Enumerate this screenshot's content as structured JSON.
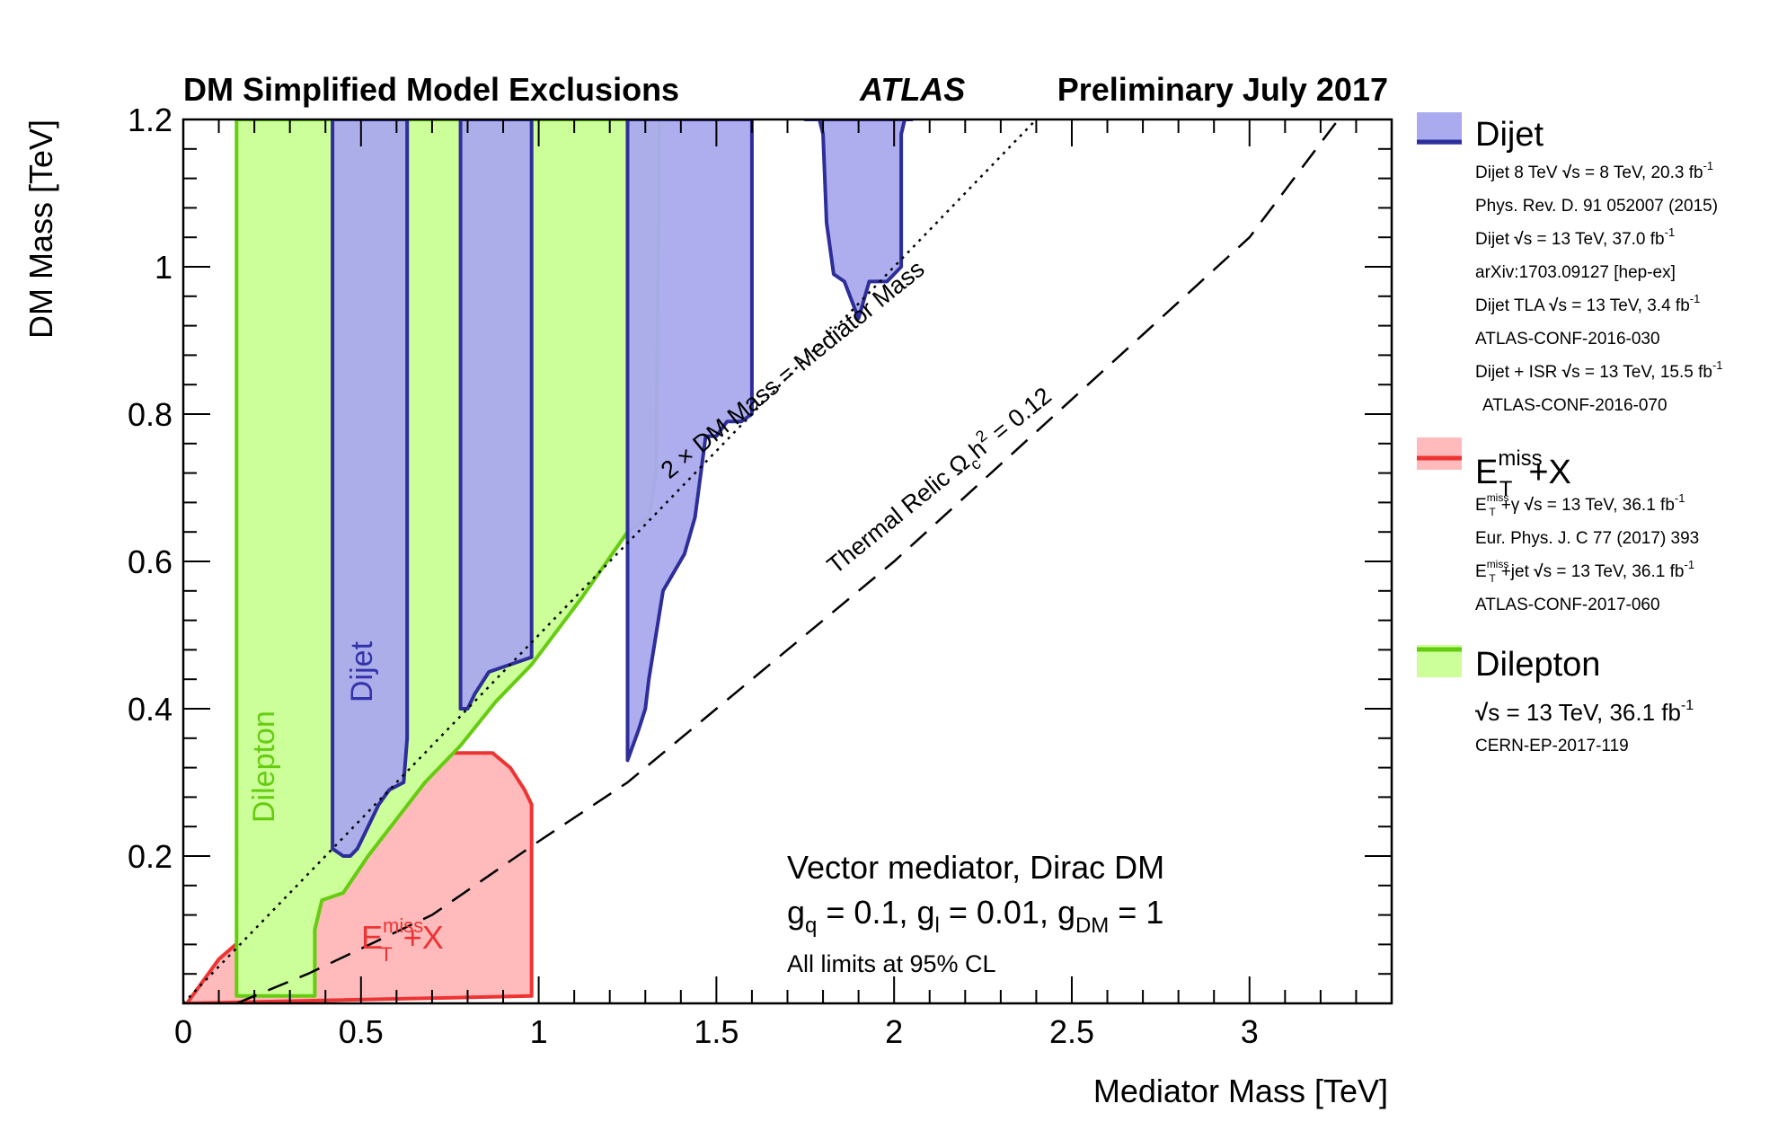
{
  "header": {
    "title": "DM Simplified Model Exclusions",
    "experiment": "ATLAS",
    "status": "Preliminary July 2017"
  },
  "chart_data": {
    "type": "area",
    "xlabel": "Mediator Mass [TeV]",
    "ylabel": "DM Mass [TeV]",
    "xlim": [
      0,
      3.4
    ],
    "ylim": [
      0,
      1.2
    ],
    "x_ticks": [
      0,
      0.5,
      1,
      1.5,
      2,
      2.5,
      3
    ],
    "x_tick_labels": [
      "0",
      "0.5",
      "1",
      "1.5",
      "2",
      "2.5",
      "3"
    ],
    "y_ticks": [
      0.2,
      0.4,
      0.6,
      0.8,
      1.0,
      1.2
    ],
    "y_tick_labels": [
      "0.2",
      "0.4",
      "0.6",
      "0.8",
      "1",
      "1.2"
    ],
    "colors": {
      "dijet_fill": "#aaaaee",
      "dijet_line": "#2e2e9a",
      "etmiss_fill": "#ffbbbb",
      "etmiss_line": "#ee3333",
      "dilepton_fill": "#ccff99",
      "dilepton_line": "#66cc11"
    },
    "series": [
      {
        "name": "Dilepton",
        "style": "region",
        "points": [
          [
            0.15,
            0.01
          ],
          [
            0.15,
            1.2
          ],
          [
            1.34,
            1.2
          ],
          [
            1.33,
            0.72
          ],
          [
            1.31,
            0.66
          ],
          [
            1.25,
            0.64
          ],
          [
            1.12,
            0.55
          ],
          [
            0.98,
            0.46
          ],
          [
            0.88,
            0.41
          ],
          [
            0.78,
            0.35
          ],
          [
            0.68,
            0.3
          ],
          [
            0.52,
            0.2
          ],
          [
            0.45,
            0.15
          ],
          [
            0.39,
            0.14
          ],
          [
            0.37,
            0.1
          ],
          [
            0.37,
            0.01
          ]
        ]
      },
      {
        "name": "Dijet",
        "style": "region",
        "points": [
          [
            0.42,
            0.21
          ],
          [
            0.42,
            1.2
          ],
          [
            0.63,
            1.2
          ],
          [
            0.63,
            0.36
          ],
          [
            0.62,
            0.3
          ],
          [
            0.58,
            0.29
          ],
          [
            0.55,
            0.27
          ],
          [
            0.5,
            0.22
          ],
          [
            0.49,
            0.21
          ],
          [
            0.47,
            0.2
          ],
          [
            0.45,
            0.2
          ]
        ]
      },
      {
        "name": "Dijet",
        "style": "region",
        "points": [
          [
            0.78,
            0.4
          ],
          [
            0.78,
            1.2
          ],
          [
            0.98,
            1.2
          ],
          [
            0.98,
            0.47
          ],
          [
            0.86,
            0.45
          ],
          [
            0.82,
            0.42
          ],
          [
            0.8,
            0.4
          ]
        ]
      },
      {
        "name": "Dijet",
        "style": "region",
        "points": [
          [
            1.25,
            0.33
          ],
          [
            1.25,
            1.2
          ],
          [
            1.6,
            1.2
          ],
          [
            1.6,
            0.8
          ],
          [
            1.57,
            0.79
          ],
          [
            1.53,
            0.79
          ],
          [
            1.5,
            0.77
          ],
          [
            1.47,
            0.77
          ],
          [
            1.44,
            0.66
          ],
          [
            1.41,
            0.61
          ],
          [
            1.35,
            0.56
          ],
          [
            1.33,
            0.5
          ],
          [
            1.31,
            0.44
          ],
          [
            1.3,
            0.4
          ],
          [
            1.28,
            0.37
          ]
        ]
      },
      {
        "name": "Dijet",
        "style": "region",
        "points": [
          [
            1.75,
            1.2
          ],
          [
            1.79,
            1.2
          ],
          [
            1.8,
            1.18
          ],
          [
            1.81,
            1.06
          ],
          [
            1.83,
            0.99
          ],
          [
            1.86,
            0.98
          ],
          [
            1.9,
            0.93
          ],
          [
            1.93,
            0.98
          ],
          [
            1.98,
            0.98
          ],
          [
            2.02,
            1.0
          ],
          [
            2.02,
            1.18
          ],
          [
            2.03,
            1.2
          ],
          [
            2.05,
            1.2
          ]
        ]
      },
      {
        "name": "ETmiss+X",
        "style": "region",
        "points": [
          [
            0.01,
            0.0
          ],
          [
            0.1,
            0.06
          ],
          [
            0.22,
            0.11
          ],
          [
            0.3,
            0.16
          ],
          [
            0.42,
            0.22
          ],
          [
            0.5,
            0.26
          ],
          [
            0.58,
            0.3
          ],
          [
            0.66,
            0.32
          ],
          [
            0.72,
            0.32
          ],
          [
            0.73,
            0.34
          ],
          [
            0.87,
            0.34
          ],
          [
            0.92,
            0.32
          ],
          [
            0.96,
            0.29
          ],
          [
            0.98,
            0.27
          ],
          [
            0.98,
            0.01
          ],
          [
            0.01,
            0.0
          ]
        ]
      }
    ],
    "reference_lines": [
      {
        "label": "2 × DM Mass = Mediator Mass",
        "style": "dotted",
        "slope": 0.5
      },
      {
        "label": "Thermal Relic Ωch² = 0.12",
        "style": "dashed",
        "points": [
          [
            0.15,
            0.0
          ],
          [
            0.35,
            0.04
          ],
          [
            0.7,
            0.12
          ],
          [
            1.0,
            0.22
          ],
          [
            1.25,
            0.3
          ],
          [
            1.5,
            0.4
          ],
          [
            2.0,
            0.6
          ],
          [
            2.5,
            0.82
          ],
          [
            3.0,
            1.04
          ],
          [
            3.25,
            1.2
          ]
        ]
      }
    ],
    "region_labels": {
      "dilepton": "Dilepton",
      "dijet": "Dijet",
      "etmiss_base": "E",
      "etmiss_sup": "miss",
      "etmiss_sub": "T",
      "etmiss_tail": "+X",
      "diag_line": "2 × DM Mass = Mediator Mass",
      "relic_a": "Thermal Relic Ω",
      "relic_sub": "c",
      "relic_b": "h",
      "relic_sup": "2",
      "relic_c": " = 0.12"
    },
    "model": {
      "line1": "Vector mediator, Dirac DM",
      "g": "g",
      "q": "q",
      "qval": " = 0.1, g",
      "l": "l",
      "lval": " = 0.01, g",
      "dm": "DM",
      "dmval": " = 1",
      "line3": "All limits at 95% CL"
    },
    "legend": {
      "dijet": {
        "title": "Dijet",
        "refs": [
          {
            "pre": "Dijet 8 TeV ",
            "rs": "s",
            "mid": " = 8 TeV, 20.3 fb",
            "exp": "-1",
            "pub": "Phys. Rev. D. 91 052007 (2015)"
          },
          {
            "pre": "Dijet ",
            "rs": "s",
            "mid": " = 13 TeV, 37.0 fb",
            "exp": "-1",
            "pub": "arXiv:1703.09127 [hep-ex]"
          },
          {
            "pre": "Dijet TLA ",
            "rs": "s",
            "mid": " = 13 TeV, 3.4 fb",
            "exp": "-1",
            "pub": "ATLAS-CONF-2016-030"
          },
          {
            "pre": "Dijet + ISR ",
            "rs": "s",
            "mid": " = 13 TeV, 15.5 fb",
            "exp": "-1",
            "pub": "ATLAS-CONF-2016-070"
          }
        ]
      },
      "etmiss": {
        "title_base": "E",
        "title_sup": "miss",
        "title_sub": "T",
        "title_tail": "+X",
        "refs": [
          {
            "tail": "+γ ",
            "rs": "s",
            "mid": " = 13 TeV, 36.1 fb",
            "exp": "-1",
            "pub": "Eur. Phys. J. C 77 (2017) 393"
          },
          {
            "tail": "+jet ",
            "rs": "s",
            "mid": " = 13 TeV, 36.1 fb",
            "exp": "-1",
            "pub": "ATLAS-CONF-2017-060"
          }
        ]
      },
      "dilepton": {
        "title": "Dilepton",
        "rs": "s",
        "mid": " = 13 TeV, 36.1 fb",
        "exp": "-1",
        "pub": "CERN-EP-2017-119"
      }
    }
  }
}
